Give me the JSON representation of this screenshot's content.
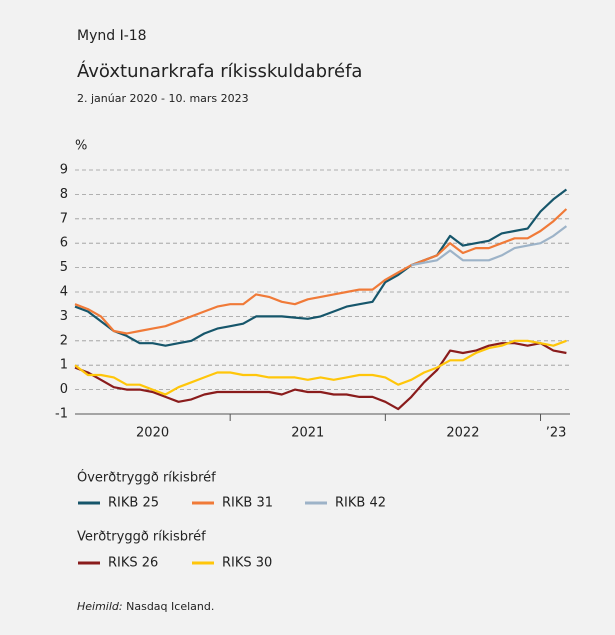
{
  "chart_data": {
    "type": "line",
    "figure_label": "Mynd I-18",
    "title": "Ávöxtunarkrafa ríkisskuldabréfa",
    "subtitle": "2. janúar 2020 - 10. mars 2023",
    "y_label": "%",
    "x": [
      2020,
      2020.083,
      2020.167,
      2020.25,
      2020.333,
      2020.417,
      2020.5,
      2020.583,
      2020.667,
      2020.75,
      2020.833,
      2020.917,
      2021,
      2021.083,
      2021.167,
      2021.25,
      2021.333,
      2021.417,
      2021.5,
      2021.583,
      2021.667,
      2021.75,
      2021.833,
      2021.917,
      2022,
      2022.083,
      2022.167,
      2022.25,
      2022.333,
      2022.417,
      2022.5,
      2022.583,
      2022.667,
      2022.75,
      2022.833,
      2022.917,
      2023,
      2023.083,
      2023.167
    ],
    "xlim": [
      2020,
      2023.19
    ],
    "xticks": [
      2021,
      2022,
      2023
    ],
    "xtick_labels": [
      {
        "value": 2020.5,
        "label": "2020"
      },
      {
        "value": 2021.5,
        "label": "2021"
      },
      {
        "value": 2022.5,
        "label": "2022"
      },
      {
        "value": 2023.1,
        "label": "’23"
      }
    ],
    "ylim": [
      -1,
      9
    ],
    "yticks": [
      -1,
      0,
      1,
      2,
      3,
      4,
      5,
      6,
      7,
      8,
      9
    ],
    "grid": true,
    "legend_groups": [
      "Óverðtryggð ríkisbréf",
      "Verðtryggð ríkisbréf"
    ],
    "series": [
      {
        "name": "RIKB 25",
        "color": "#16566b",
        "values": [
          3.4,
          3.2,
          2.8,
          2.4,
          2.2,
          1.9,
          1.9,
          1.8,
          1.9,
          2.0,
          2.3,
          2.5,
          2.6,
          2.7,
          3.0,
          3.0,
          3.0,
          2.95,
          2.9,
          3.0,
          3.2,
          3.4,
          3.5,
          3.6,
          4.4,
          4.7,
          5.1,
          5.3,
          5.5,
          6.3,
          5.9,
          6.0,
          6.1,
          6.4,
          6.5,
          6.6,
          7.3,
          7.8,
          8.2
        ]
      },
      {
        "name": "RIKB 31",
        "color": "#f07a38",
        "values": [
          3.5,
          3.3,
          3.0,
          2.4,
          2.3,
          2.4,
          2.5,
          2.6,
          2.8,
          3.0,
          3.2,
          3.4,
          3.5,
          3.5,
          3.9,
          3.8,
          3.6,
          3.5,
          3.7,
          3.8,
          3.9,
          4.0,
          4.1,
          4.1,
          4.5,
          4.8,
          5.1,
          5.3,
          5.5,
          6.0,
          5.6,
          5.8,
          5.8,
          6.0,
          6.2,
          6.2,
          6.5,
          6.9,
          7.4
        ]
      },
      {
        "name": "RIKB 42",
        "color": "#9db3c8",
        "values": [
          null,
          null,
          null,
          null,
          null,
          null,
          null,
          null,
          null,
          null,
          null,
          null,
          null,
          null,
          null,
          null,
          null,
          null,
          null,
          null,
          null,
          null,
          null,
          null,
          null,
          null,
          5.1,
          5.2,
          5.3,
          5.7,
          5.3,
          5.3,
          5.3,
          5.5,
          5.8,
          5.9,
          6.0,
          6.3,
          6.7
        ]
      },
      {
        "name": "RIKS 26",
        "color": "#8a1c1c",
        "values": [
          0.9,
          0.7,
          0.4,
          0.1,
          0,
          0,
          -0.1,
          -0.3,
          -0.5,
          -0.4,
          -0.2,
          -0.1,
          -0.1,
          -0.1,
          -0.1,
          -0.1,
          -0.2,
          0,
          -0.1,
          -0.1,
          -0.2,
          -0.2,
          -0.3,
          -0.3,
          -0.5,
          -0.8,
          -0.3,
          0.3,
          0.8,
          1.6,
          1.5,
          1.6,
          1.8,
          1.9,
          1.9,
          1.8,
          1.9,
          1.6,
          1.5
        ]
      },
      {
        "name": "RIKS 30",
        "color": "#ffc60a",
        "values": [
          1.0,
          0.6,
          0.6,
          0.5,
          0.2,
          0.2,
          0,
          -0.2,
          0.1,
          0.3,
          0.5,
          0.7,
          0.7,
          0.6,
          0.6,
          0.5,
          0.5,
          0.5,
          0.4,
          0.5,
          0.4,
          0.5,
          0.6,
          0.6,
          0.5,
          0.2,
          0.4,
          0.7,
          0.9,
          1.2,
          1.2,
          1.5,
          1.7,
          1.8,
          2.0,
          2.0,
          1.9,
          1.8,
          2.0
        ]
      }
    ],
    "source_label": "Heimild:",
    "source": "Nasdaq Iceland."
  }
}
